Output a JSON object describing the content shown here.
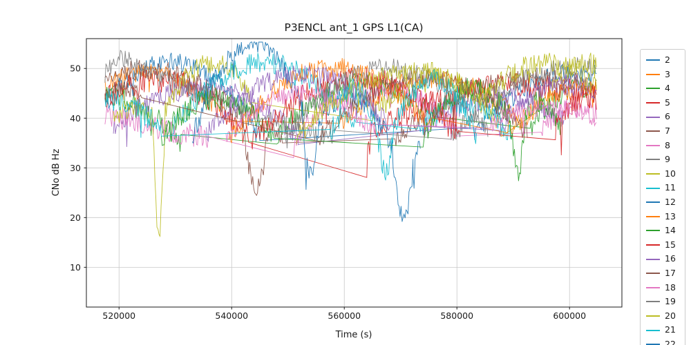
{
  "chart_data": {
    "type": "line",
    "title": "P3ENCL ant_1 GPS L1(CA)",
    "xlabel": "Time (s)",
    "ylabel": "CNo dB Hz",
    "xlim": [
      514200,
      609300
    ],
    "ylim": [
      2,
      56
    ],
    "xticks": [
      520000,
      540000,
      560000,
      580000,
      600000
    ],
    "yticks": [
      10,
      20,
      30,
      40,
      50
    ],
    "grid": true,
    "grid_color": "#c8c8c8",
    "legend_position": "right-outside",
    "series": [
      {
        "label": "2",
        "color": "#1f77b4",
        "noise": 2.0,
        "spike": 5,
        "seed": 2,
        "segments": [
          {
            "t": [
              517500,
              545000
            ],
            "v": [
              43,
              51,
              37
            ]
          },
          {
            "t": [
              583000,
              604800
            ],
            "v": [
              37,
              47,
              49
            ]
          }
        ]
      },
      {
        "label": "3",
        "color": "#ff7f0e",
        "noise": 2.0,
        "spike": 5,
        "seed": 3,
        "segments": [
          {
            "t": [
              517500,
              539000
            ],
            "v": [
              46,
              49,
              40
            ]
          },
          {
            "t": [
              559000,
              591000
            ],
            "v": [
              38,
              48,
              40
            ]
          }
        ]
      },
      {
        "label": "4",
        "color": "#2ca02c",
        "noise": 2.2,
        "spike": 5,
        "seed": 4,
        "segments": [
          {
            "t": [
              517500,
              531000
            ],
            "v": [
              45,
              42,
              35
            ]
          },
          {
            "t": [
              548000,
              576000
            ],
            "v": [
              36,
              47,
              40
            ]
          },
          {
            "t": [
              593000,
              604800
            ],
            "v": [
              38,
              45,
              46
            ]
          }
        ]
      },
      {
        "label": "5",
        "color": "#d62728",
        "noise": 2.5,
        "spike": 6,
        "seed": 5,
        "segments": [
          {
            "t": [
              517500,
              543000
            ],
            "v": [
              44,
              47,
              36
            ]
          },
          {
            "t": [
              564000,
              604800
            ],
            "v": [
              36,
              46,
              44
            ]
          }
        ]
      },
      {
        "label": "6",
        "color": "#9467bd",
        "noise": 2.2,
        "spike": 5,
        "seed": 6,
        "segments": [
          {
            "t": [
              519000,
              552000
            ],
            "v": [
              38,
              46,
              36
            ]
          },
          {
            "t": [
              574000,
              599000
            ],
            "v": [
              38,
              44,
              40
            ]
          }
        ]
      },
      {
        "label": "7",
        "color": "#8c564b",
        "noise": 2.0,
        "spike": 5,
        "seed": 7,
        "segments": [
          {
            "t": [
              517500,
              542000
            ],
            "v": [
              48,
              49,
              40
            ]
          },
          {
            "t": [
              542000,
              546500
            ],
            "v": [
              40,
              26,
              38
            ]
          },
          {
            "t": [
              546500,
              549000
            ],
            "v": [
              38,
              37,
              36
            ]
          },
          {
            "t": [
              569000,
              604800
            ],
            "v": [
              36,
              47,
              46
            ]
          }
        ]
      },
      {
        "label": "8",
        "color": "#e377c2",
        "noise": 2.3,
        "spike": 5,
        "seed": 8,
        "segments": [
          {
            "t": [
              517500,
              536000
            ],
            "v": [
              41,
              38,
              36
            ]
          },
          {
            "t": [
              551000,
              580000
            ],
            "v": [
              36,
              46,
              38
            ]
          },
          {
            "t": [
              595000,
              604800
            ],
            "v": [
              38,
              42,
              41
            ]
          }
        ]
      },
      {
        "label": "9",
        "color": "#7f7f7f",
        "noise": 2.0,
        "spike": 5,
        "seed": 9,
        "segments": [
          {
            "t": [
              517500,
              524000
            ],
            "v": [
              49,
              52,
              50
            ]
          },
          {
            "t": [
              524000,
              558000
            ],
            "v": [
              50,
              42,
              36
            ]
          },
          {
            "t": [
              579000,
              604800
            ],
            "v": [
              36,
              48,
              50
            ]
          }
        ]
      },
      {
        "label": "10",
        "color": "#bcbd22",
        "noise": 2.2,
        "spike": 5,
        "seed": 10,
        "segments": [
          {
            "t": [
              519000,
              526000
            ],
            "v": [
              40,
              42,
              40
            ]
          },
          {
            "t": [
              526000,
              528200
            ],
            "v": [
              40,
              17.5,
              42
            ]
          },
          {
            "t": [
              528200,
              543500
            ],
            "v": [
              42,
              51,
              44
            ]
          },
          {
            "t": [
              565000,
              588000
            ],
            "v": [
              40,
              48,
              38
            ]
          },
          {
            "t": [
              596000,
              604800
            ],
            "v": [
              44,
              50,
              51
            ]
          }
        ]
      },
      {
        "label": "11",
        "color": "#17becf",
        "noise": 2.2,
        "spike": 5,
        "seed": 11,
        "segments": [
          {
            "t": [
              529000,
              562000
            ],
            "v": [
              37,
              51,
              38
            ]
          },
          {
            "t": [
              573000,
              590000
            ],
            "v": [
              37,
              43,
              36
            ]
          }
        ]
      },
      {
        "label": "12",
        "color": "#1f77b4",
        "noise": 2.0,
        "spike": 5,
        "seed": 12,
        "segments": [
          {
            "t": [
              533000,
              552500
            ],
            "v": [
              36,
              55,
              42
            ]
          },
          {
            "t": [
              552500,
              555500
            ],
            "v": [
              42,
              28.5,
              40
            ]
          },
          {
            "t": [
              555500,
              568500
            ],
            "v": [
              40,
              44,
              34
            ]
          },
          {
            "t": [
              568500,
              572200
            ],
            "v": [
              34,
              20,
              30
            ]
          },
          {
            "t": [
              572200,
              573500
            ],
            "v": [
              30,
              33,
              34
            ]
          }
        ]
      },
      {
        "label": "13",
        "color": "#ff7f0e",
        "noise": 2.2,
        "spike": 5,
        "seed": 13,
        "segments": [
          {
            "t": [
              539500,
              575500
            ],
            "v": [
              36,
              50,
              38
            ]
          },
          {
            "t": [
              589000,
              604800
            ],
            "v": [
              37,
              44,
              46
            ]
          }
        ]
      },
      {
        "label": "14",
        "color": "#2ca02c",
        "noise": 2.3,
        "spike": 5,
        "seed": 14,
        "segments": [
          {
            "t": [
              527500,
              547500
            ],
            "v": [
              36,
              44,
              36
            ]
          },
          {
            "t": [
              574000,
              589500
            ],
            "v": [
              36,
              46,
              40
            ]
          },
          {
            "t": [
              589500,
              592200
            ],
            "v": [
              40,
              29.5,
              41
            ]
          },
          {
            "t": [
              592200,
              598500
            ],
            "v": [
              41,
              43,
              38
            ]
          }
        ]
      },
      {
        "label": "15",
        "color": "#d62728",
        "noise": 2.4,
        "spike": 6,
        "seed": 15,
        "segments": [
          {
            "t": [
              543500,
              580500
            ],
            "v": [
              35,
              48,
              37
            ]
          },
          {
            "t": [
              597500,
              604800
            ],
            "v": [
              38,
              43,
              44
            ]
          }
        ]
      },
      {
        "label": "16",
        "color": "#9467bd",
        "noise": 2.2,
        "spike": 5,
        "seed": 16,
        "segments": [
          {
            "t": [
              535500,
              568500
            ],
            "v": [
              37,
              49,
              38
            ]
          },
          {
            "t": [
              587500,
              604800
            ],
            "v": [
              38,
              46,
              45
            ]
          }
        ]
      },
      {
        "label": "17",
        "color": "#8c564b",
        "noise": 2.0,
        "spike": 5,
        "seed": 17,
        "segments": [
          {
            "t": [
              517500,
              524000
            ],
            "v": [
              44,
              46,
              44
            ]
          },
          {
            "t": [
              555500,
              592500
            ],
            "v": [
              36,
              48,
              37
            ]
          }
        ]
      },
      {
        "label": "18",
        "color": "#e377c2",
        "noise": 1.8,
        "spike": 4,
        "seed": 18,
        "segments": [
          {
            "t": [
              539000,
              565500
            ],
            "v": [
              36,
              45,
              37
            ]
          },
          {
            "t": [
              586000,
              604800
            ],
            "v": [
              39,
              42,
              40
            ]
          }
        ]
      },
      {
        "label": "19",
        "color": "#7f7f7f",
        "noise": 2.0,
        "spike": 5,
        "seed": 19,
        "segments": [
          {
            "t": [
              549500,
              585500
            ],
            "v": [
              36,
              50,
              37
            ]
          }
        ]
      },
      {
        "label": "20",
        "color": "#bcbd22",
        "noise": 2.2,
        "spike": 5,
        "seed": 20,
        "segments": [
          {
            "t": [
              551500,
              585000
            ],
            "v": [
              36,
              49,
              44
            ]
          },
          {
            "t": [
              585000,
              604800
            ],
            "v": [
              44,
              51,
              46
            ]
          }
        ]
      },
      {
        "label": "21",
        "color": "#17becf",
        "noise": 2.2,
        "spike": 5,
        "seed": 21,
        "segments": [
          {
            "t": [
              517500,
              527500
            ],
            "v": [
              44,
              42,
              38
            ]
          },
          {
            "t": [
              557500,
              566800
            ],
            "v": [
              36,
              46,
              31
            ]
          },
          {
            "t": [
              566800,
              568800
            ],
            "v": [
              31,
              30,
              38
            ]
          },
          {
            "t": [
              568800,
              583500
            ],
            "v": [
              38,
              48,
              36
            ]
          }
        ]
      },
      {
        "label": "22",
        "color": "#1f77b4",
        "noise": 2.0,
        "spike": 5,
        "seed": 22,
        "segments": []
      }
    ]
  }
}
